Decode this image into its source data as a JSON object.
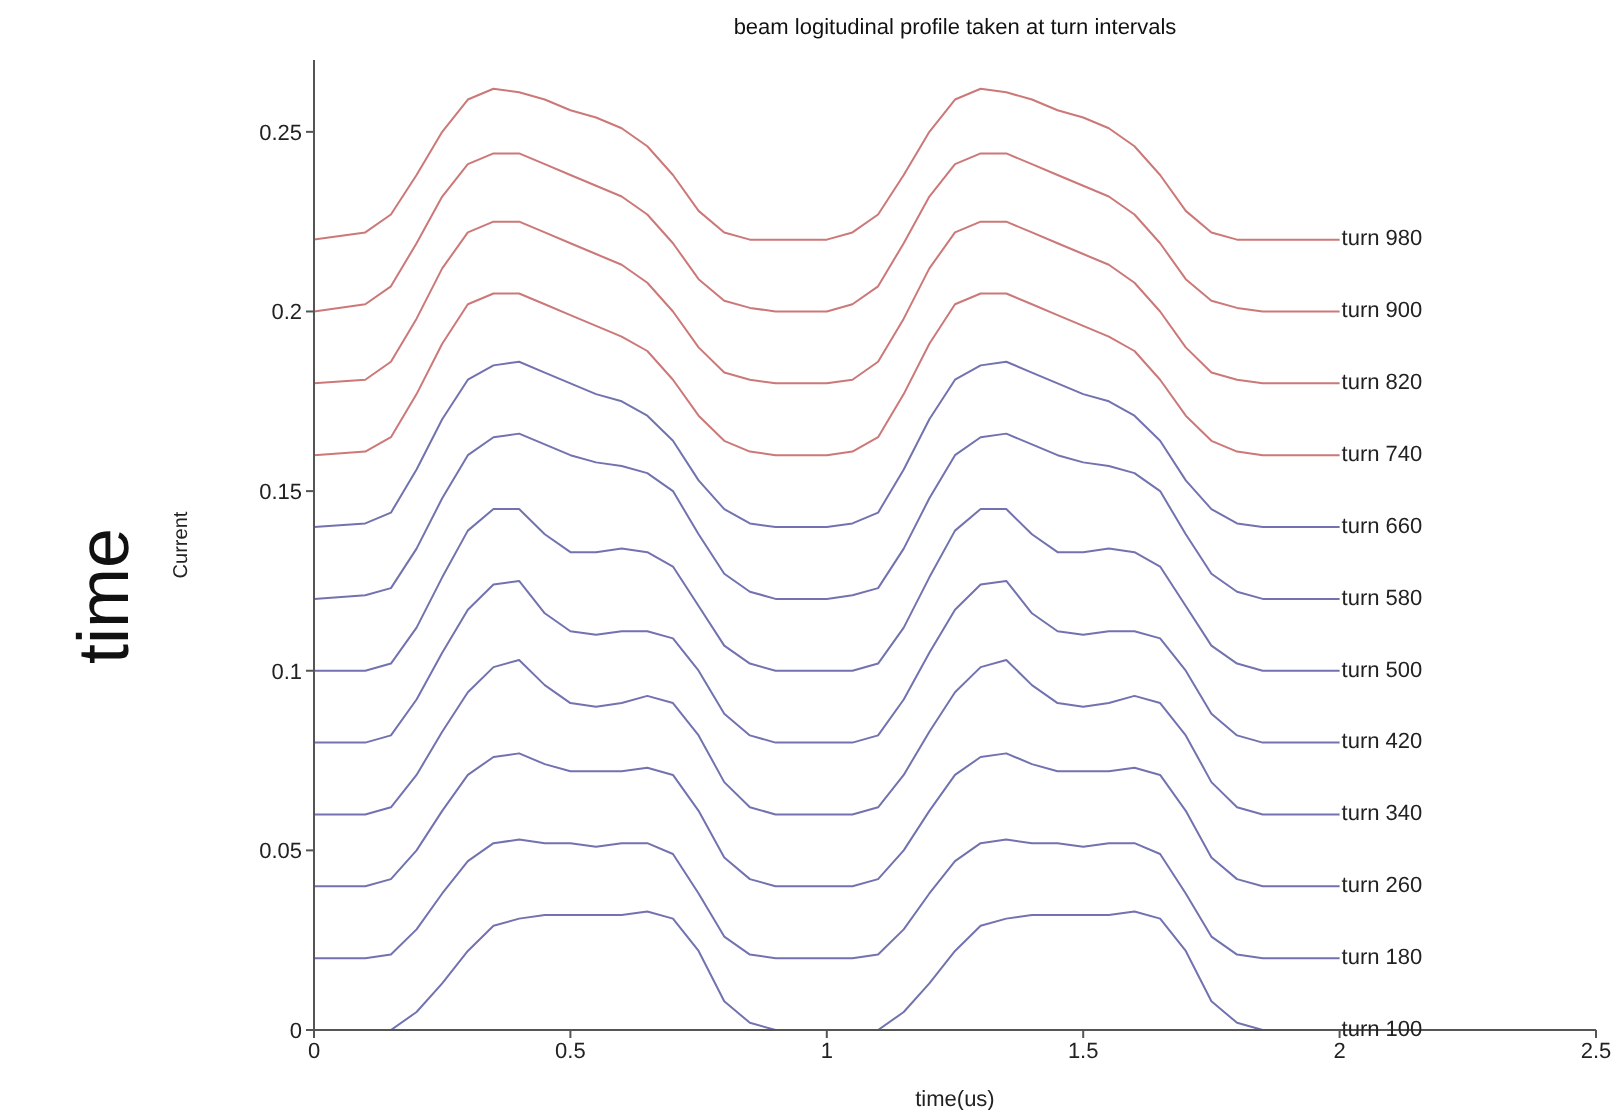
{
  "chart_data": {
    "type": "line",
    "title": "beam logitudinal profile taken at turn intervals",
    "xlabel": "time(us)",
    "ylabel": "Current",
    "annotations": [
      "time"
    ],
    "x": [
      0,
      0.1,
      0.15,
      0.2,
      0.25,
      0.3,
      0.35,
      0.4,
      0.45,
      0.5,
      0.55,
      0.6,
      0.65,
      0.7,
      0.75,
      0.8,
      0.85,
      0.9,
      1,
      1.05,
      1.1,
      1.15,
      1.2,
      1.25,
      1.3,
      1.35,
      1.4,
      1.45,
      1.5,
      1.55,
      1.6,
      1.65,
      1.7,
      1.75,
      1.8,
      1.85,
      1.9,
      2
    ],
    "xlim": [
      0,
      2.5
    ],
    "xticks": [
      0,
      0.5,
      1,
      1.5,
      2,
      2.5
    ],
    "ylim": [
      0,
      0.27
    ],
    "yticks": [
      0,
      0.05,
      0.1,
      0.15,
      0.2,
      0.25
    ],
    "series": [
      {
        "name": "turn 100",
        "color": "#7272b0",
        "values": [
          0,
          0,
          0,
          0.005,
          0.013,
          0.022,
          0.029,
          0.031,
          0.032,
          0.032,
          0.032,
          0.032,
          0.033,
          0.031,
          0.022,
          0.008,
          0.002,
          0,
          0,
          0,
          0,
          0.005,
          0.013,
          0.022,
          0.029,
          0.031,
          0.032,
          0.032,
          0.032,
          0.032,
          0.033,
          0.031,
          0.022,
          0.008,
          0.002,
          0,
          0,
          0
        ]
      },
      {
        "name": "turn 180",
        "color": "#7272b0",
        "values": [
          0.02,
          0.02,
          0.021,
          0.028,
          0.038,
          0.047,
          0.052,
          0.053,
          0.052,
          0.052,
          0.051,
          0.052,
          0.052,
          0.049,
          0.038,
          0.026,
          0.021,
          0.02,
          0.02,
          0.02,
          0.021,
          0.028,
          0.038,
          0.047,
          0.052,
          0.053,
          0.052,
          0.052,
          0.051,
          0.052,
          0.052,
          0.049,
          0.038,
          0.026,
          0.021,
          0.02,
          0.02,
          0.02
        ]
      },
      {
        "name": "turn 260",
        "color": "#7272b0",
        "values": [
          0.04,
          0.04,
          0.042,
          0.05,
          0.061,
          0.071,
          0.076,
          0.077,
          0.074,
          0.072,
          0.072,
          0.072,
          0.073,
          0.071,
          0.061,
          0.048,
          0.042,
          0.04,
          0.04,
          0.04,
          0.042,
          0.05,
          0.061,
          0.071,
          0.076,
          0.077,
          0.074,
          0.072,
          0.072,
          0.072,
          0.073,
          0.071,
          0.061,
          0.048,
          0.042,
          0.04,
          0.04,
          0.04
        ]
      },
      {
        "name": "turn 340",
        "color": "#7272b0",
        "values": [
          0.06,
          0.06,
          0.062,
          0.071,
          0.083,
          0.094,
          0.101,
          0.103,
          0.096,
          0.091,
          0.09,
          0.091,
          0.093,
          0.091,
          0.082,
          0.069,
          0.062,
          0.06,
          0.06,
          0.06,
          0.062,
          0.071,
          0.083,
          0.094,
          0.101,
          0.103,
          0.096,
          0.091,
          0.09,
          0.091,
          0.093,
          0.091,
          0.082,
          0.069,
          0.062,
          0.06,
          0.06,
          0.06
        ]
      },
      {
        "name": "turn 420",
        "color": "#7272b0",
        "values": [
          0.08,
          0.08,
          0.082,
          0.092,
          0.105,
          0.117,
          0.124,
          0.125,
          0.116,
          0.111,
          0.11,
          0.111,
          0.111,
          0.109,
          0.1,
          0.088,
          0.082,
          0.08,
          0.08,
          0.08,
          0.082,
          0.092,
          0.105,
          0.117,
          0.124,
          0.125,
          0.116,
          0.111,
          0.11,
          0.111,
          0.111,
          0.109,
          0.1,
          0.088,
          0.082,
          0.08,
          0.08,
          0.08
        ]
      },
      {
        "name": "turn 500",
        "color": "#7272b0",
        "values": [
          0.1,
          0.1,
          0.102,
          0.112,
          0.126,
          0.139,
          0.145,
          0.145,
          0.138,
          0.133,
          0.133,
          0.134,
          0.133,
          0.129,
          0.118,
          0.107,
          0.102,
          0.1,
          0.1,
          0.1,
          0.102,
          0.112,
          0.126,
          0.139,
          0.145,
          0.145,
          0.138,
          0.133,
          0.133,
          0.134,
          0.133,
          0.129,
          0.118,
          0.107,
          0.102,
          0.1,
          0.1,
          0.1
        ]
      },
      {
        "name": "turn 580",
        "color": "#7272b0",
        "values": [
          0.12,
          0.121,
          0.123,
          0.134,
          0.148,
          0.16,
          0.165,
          0.166,
          0.163,
          0.16,
          0.158,
          0.157,
          0.155,
          0.15,
          0.138,
          0.127,
          0.122,
          0.12,
          0.12,
          0.121,
          0.123,
          0.134,
          0.148,
          0.16,
          0.165,
          0.166,
          0.163,
          0.16,
          0.158,
          0.157,
          0.155,
          0.15,
          0.138,
          0.127,
          0.122,
          0.12,
          0.12,
          0.12
        ]
      },
      {
        "name": "turn 660",
        "color": "#7272b0",
        "values": [
          0.14,
          0.141,
          0.144,
          0.156,
          0.17,
          0.181,
          0.185,
          0.186,
          0.183,
          0.18,
          0.177,
          0.175,
          0.171,
          0.164,
          0.153,
          0.145,
          0.141,
          0.14,
          0.14,
          0.141,
          0.144,
          0.156,
          0.17,
          0.181,
          0.185,
          0.186,
          0.183,
          0.18,
          0.177,
          0.175,
          0.171,
          0.164,
          0.153,
          0.145,
          0.141,
          0.14,
          0.14,
          0.14
        ]
      },
      {
        "name": "turn 740",
        "color": "#cc7878",
        "values": [
          0.16,
          0.161,
          0.165,
          0.177,
          0.191,
          0.202,
          0.205,
          0.205,
          0.202,
          0.199,
          0.196,
          0.193,
          0.189,
          0.181,
          0.171,
          0.164,
          0.161,
          0.16,
          0.16,
          0.161,
          0.165,
          0.177,
          0.191,
          0.202,
          0.205,
          0.205,
          0.202,
          0.199,
          0.196,
          0.193,
          0.189,
          0.181,
          0.171,
          0.164,
          0.161,
          0.16,
          0.16,
          0.16
        ]
      },
      {
        "name": "turn 820",
        "color": "#cc7878",
        "values": [
          0.18,
          0.181,
          0.186,
          0.198,
          0.212,
          0.222,
          0.225,
          0.225,
          0.222,
          0.219,
          0.216,
          0.213,
          0.208,
          0.2,
          0.19,
          0.183,
          0.181,
          0.18,
          0.18,
          0.181,
          0.186,
          0.198,
          0.212,
          0.222,
          0.225,
          0.225,
          0.222,
          0.219,
          0.216,
          0.213,
          0.208,
          0.2,
          0.19,
          0.183,
          0.181,
          0.18,
          0.18,
          0.18
        ]
      },
      {
        "name": "turn 900",
        "color": "#cc7878",
        "values": [
          0.2,
          0.202,
          0.207,
          0.219,
          0.232,
          0.241,
          0.244,
          0.244,
          0.241,
          0.238,
          0.235,
          0.232,
          0.227,
          0.219,
          0.209,
          0.203,
          0.201,
          0.2,
          0.2,
          0.202,
          0.207,
          0.219,
          0.232,
          0.241,
          0.244,
          0.244,
          0.241,
          0.238,
          0.235,
          0.232,
          0.227,
          0.219,
          0.209,
          0.203,
          0.201,
          0.2,
          0.2,
          0.2
        ]
      },
      {
        "name": "turn 980",
        "color": "#cc7878",
        "values": [
          0.22,
          0.222,
          0.227,
          0.238,
          0.25,
          0.259,
          0.262,
          0.261,
          0.259,
          0.256,
          0.254,
          0.251,
          0.246,
          0.238,
          0.228,
          0.222,
          0.22,
          0.22,
          0.22,
          0.222,
          0.227,
          0.238,
          0.25,
          0.259,
          0.262,
          0.261,
          0.259,
          0.256,
          0.254,
          0.251,
          0.246,
          0.238,
          0.228,
          0.222,
          0.22,
          0.22,
          0.22,
          0.22
        ]
      }
    ]
  }
}
